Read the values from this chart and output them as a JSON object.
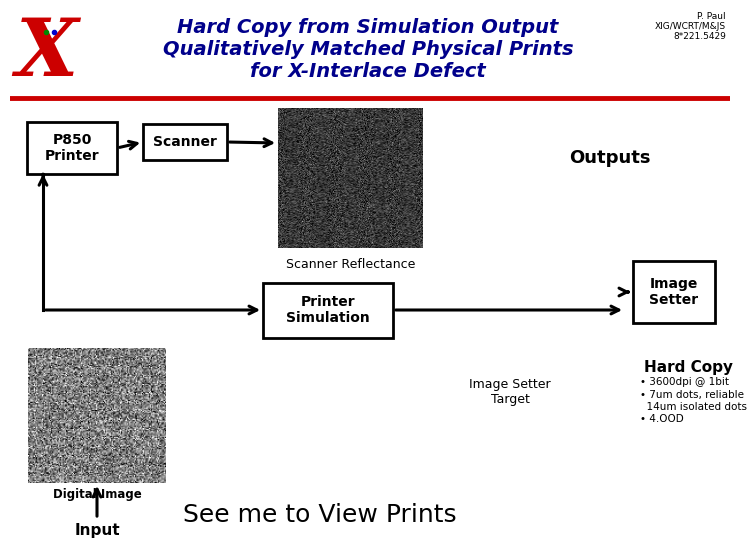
{
  "title_line1": "Hard Copy from Simulation Output",
  "title_line2": "Qualitatively Matched Physical Prints",
  "title_line3": "for X-Interlace Defect",
  "title_color": "#00008B",
  "bg_color": "#ffffff",
  "red_line_color": "#cc0000",
  "credit_line1": "P. Paul",
  "credit_line2": "XIG/WCRT/M&JS",
  "credit_line3": "8*221.5429",
  "box_p850": "P850\nPrinter",
  "box_scanner": "Scanner",
  "box_printer_sim": "Printer\nSimulation",
  "box_image_setter": "Image\nSetter",
  "label_scanner_ref": "Scanner Reflectance",
  "label_outputs": "Outputs",
  "label_image_setter_target": "Image Setter\nTarget",
  "label_hard_copy": "Hard Copy",
  "hard_copy_bullet1": "• 3600dpi @ 1bit",
  "hard_copy_bullet2": "• 7um dots, reliable",
  "hard_copy_bullet2b": "  14um isolated dots",
  "hard_copy_bullet3": "• 4.OOD",
  "label_digital_image": "Digital Image",
  "label_input": "Input",
  "label_see_me": "See me to View Prints"
}
